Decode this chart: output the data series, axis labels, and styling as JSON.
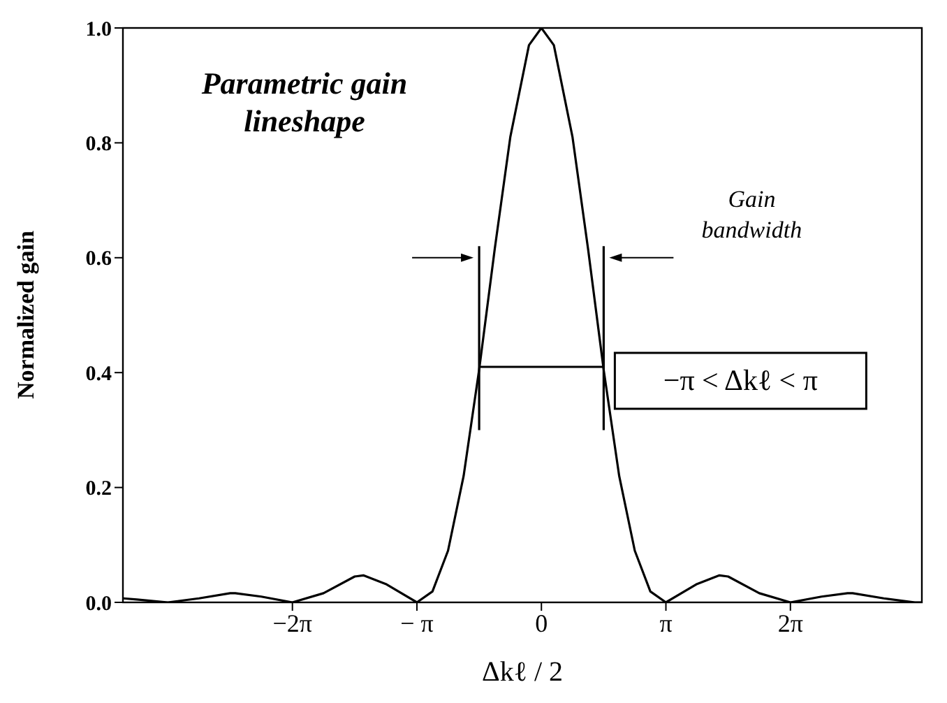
{
  "chart_data": {
    "type": "line",
    "xlabel": "Δkℓ / 2",
    "ylabel": "Normalized gain",
    "xlim": [
      -10.56,
      9.6
    ],
    "ylim": [
      0,
      1
    ],
    "xticks": [
      {
        "value": -6.283,
        "label": "−2π"
      },
      {
        "value": -3.1416,
        "label": "− π"
      },
      {
        "value": 0,
        "label": "0"
      },
      {
        "value": 3.1416,
        "label": "π"
      },
      {
        "value": 6.283,
        "label": "2π"
      }
    ],
    "yticks": [
      {
        "value": 0,
        "label": "0.0"
      },
      {
        "value": 0.2,
        "label": "0.2"
      },
      {
        "value": 0.4,
        "label": "0.4"
      },
      {
        "value": 0.6,
        "label": "0.6"
      },
      {
        "value": 0.8,
        "label": "0.8"
      },
      {
        "value": 1,
        "label": "1.0"
      }
    ],
    "marker": "none",
    "line_style": "solid",
    "series": [
      {
        "color": "#000000",
        "x": [
          -10.556,
          -10.21,
          -9.425,
          -8.639,
          -7.854,
          -7.725,
          -7.069,
          -6.283,
          -5.498,
          -4.712,
          -4.493,
          -3.927,
          -3.1416,
          -2.749,
          -2.356,
          -1.963,
          -1.571,
          -1.178,
          -0.785,
          -0.314,
          0,
          0.314,
          0.785,
          1.178,
          1.571,
          1.963,
          2.356,
          2.749,
          3.1416,
          3.927,
          4.493,
          4.712,
          5.498,
          6.283,
          7.069,
          7.725,
          7.854,
          8.639,
          9.425,
          9.582
        ],
        "values": [
          0.007,
          0.005,
          0,
          0.007,
          0.016,
          0.016,
          0.01,
          0,
          0.016,
          0.045,
          0.047,
          0.032,
          0,
          0.019,
          0.09,
          0.22,
          0.405,
          0.615,
          0.81,
          0.97,
          1,
          0.97,
          0.81,
          0.615,
          0.405,
          0.22,
          0.09,
          0.019,
          0,
          0.032,
          0.047,
          0.045,
          0.016,
          0,
          0.01,
          0.016,
          0.016,
          0.007,
          0,
          0
        ]
      },
      {
        "color": "#000000",
        "x": [
          -1.571,
          1.571
        ],
        "values": [
          0.41,
          0.41
        ]
      },
      {
        "color": "#000000",
        "x": [
          -1.571,
          -1.571
        ],
        "values": [
          0.3,
          0.62
        ]
      },
      {
        "color": "#000000",
        "x": [
          1.571,
          1.571
        ],
        "values": [
          0.3,
          0.62
        ]
      }
    ],
    "annotations": [
      "Parametric gain lineshape",
      "Gain bandwidth",
      "−π < Δkℓ < π"
    ]
  }
}
